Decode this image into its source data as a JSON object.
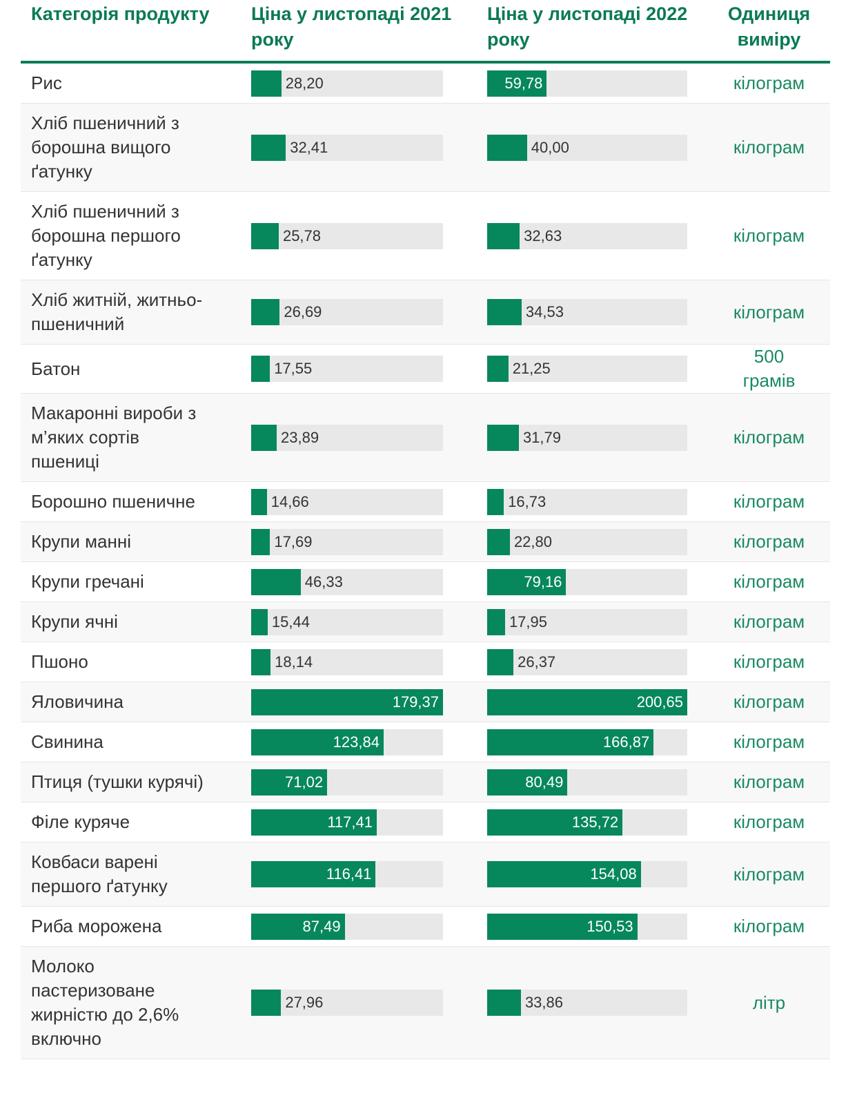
{
  "table": {
    "headers": [
      "Категорія продукту",
      "Ціна у листопаді 2021 року",
      "Ціна у листопаді 2022 року",
      "Одиниця виміру"
    ],
    "rows": [
      {
        "category": "Рис",
        "price_2021": 28.2,
        "label_2021": "28,20",
        "price_2022": 59.78,
        "label_2022": "59,78",
        "unit": "кілограм"
      },
      {
        "category": "Хліб пшеничний з борошна вищого ґатунку",
        "price_2021": 32.41,
        "label_2021": "32,41",
        "price_2022": 40.0,
        "label_2022": "40,00",
        "unit": "кілограм"
      },
      {
        "category": "Хліб пшеничний з борошна першого ґатунку",
        "price_2021": 25.78,
        "label_2021": "25,78",
        "price_2022": 32.63,
        "label_2022": "32,63",
        "unit": "кілограм"
      },
      {
        "category": "Хліб житній, житньо-пшеничний",
        "price_2021": 26.69,
        "label_2021": "26,69",
        "price_2022": 34.53,
        "label_2022": "34,53",
        "unit": "кілограм"
      },
      {
        "category": "Батон",
        "price_2021": 17.55,
        "label_2021": "17,55",
        "price_2022": 21.25,
        "label_2022": "21,25",
        "unit": "500 грамів"
      },
      {
        "category": "Макаронні вироби з м’яких сортів пшениці",
        "price_2021": 23.89,
        "label_2021": "23,89",
        "price_2022": 31.79,
        "label_2022": "31,79",
        "unit": "кілограм"
      },
      {
        "category": "Борошно пшеничне",
        "price_2021": 14.66,
        "label_2021": "14,66",
        "price_2022": 16.73,
        "label_2022": "16,73",
        "unit": "кілограм"
      },
      {
        "category": "Крупи манні",
        "price_2021": 17.69,
        "label_2021": "17,69",
        "price_2022": 22.8,
        "label_2022": "22,80",
        "unit": "кілограм"
      },
      {
        "category": "Крупи гречані",
        "price_2021": 46.33,
        "label_2021": "46,33",
        "price_2022": 79.16,
        "label_2022": "79,16",
        "unit": "кілограм"
      },
      {
        "category": "Крупи ячні",
        "price_2021": 15.44,
        "label_2021": "15,44",
        "price_2022": 17.95,
        "label_2022": "17,95",
        "unit": "кілограм"
      },
      {
        "category": "Пшоно",
        "price_2021": 18.14,
        "label_2021": "18,14",
        "price_2022": 26.37,
        "label_2022": "26,37",
        "unit": "кілограм"
      },
      {
        "category": "Яловичина",
        "price_2021": 179.37,
        "label_2021": "179,37",
        "price_2022": 200.65,
        "label_2022": "200,65",
        "unit": "кілограм"
      },
      {
        "category": "Свинина",
        "price_2021": 123.84,
        "label_2021": "123,84",
        "price_2022": 166.87,
        "label_2022": "166,87",
        "unit": "кілограм"
      },
      {
        "category": "Птиця (тушки курячі)",
        "price_2021": 71.02,
        "label_2021": "71,02",
        "price_2022": 80.49,
        "label_2022": "80,49",
        "unit": "кілограм"
      },
      {
        "category": "Філе куряче",
        "price_2021": 117.41,
        "label_2021": "117,41",
        "price_2022": 135.72,
        "label_2022": "135,72",
        "unit": "кілограм"
      },
      {
        "category": "Ковбаси варені першого ґатунку",
        "price_2021": 116.41,
        "label_2021": "116,41",
        "price_2022": 154.08,
        "label_2022": "154,08",
        "unit": "кілограм"
      },
      {
        "category": "Риба морожена",
        "price_2021": 87.49,
        "label_2021": "87,49",
        "price_2022": 150.53,
        "label_2022": "150,53",
        "unit": "кілограм"
      },
      {
        "category": "Молоко пастеризоване жирністю до 2,6% включно",
        "price_2021": 27.96,
        "label_2021": "27,96",
        "price_2022": 33.86,
        "label_2022": "33,86",
        "unit": "літр"
      }
    ]
  }
}
